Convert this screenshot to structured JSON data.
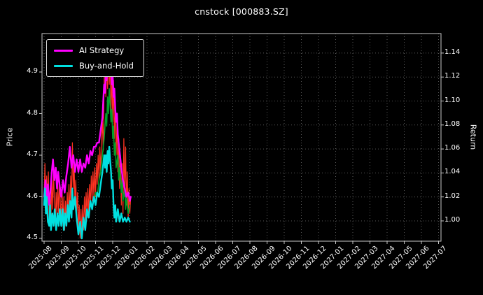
{
  "title": "cnstock [000883.SZ]",
  "legend": {
    "items": [
      {
        "label": "AI Strategy",
        "color": "#ff00ff"
      },
      {
        "label": "Buy-and-Hold",
        "color": "#00e0e0"
      }
    ]
  },
  "axes": {
    "left_label": "Price",
    "right_label": "Return",
    "left_ticks": [
      "4.5",
      "4.6",
      "4.7",
      "4.8",
      "4.9"
    ],
    "right_ticks": [
      "1.00",
      "1.02",
      "1.04",
      "1.06",
      "1.08",
      "1.10",
      "1.12",
      "1.14"
    ],
    "x_ticks": [
      "2025-08",
      "2025-09",
      "2025-10",
      "2025-11",
      "2025-12",
      "2026-01",
      "2026-02",
      "2026-03",
      "2026-04",
      "2026-05",
      "2026-06",
      "2026-07",
      "2026-08",
      "2026-09",
      "2026-10",
      "2026-11",
      "2026-12",
      "2027-01",
      "2027-02",
      "2027-03",
      "2027-04",
      "2027-05",
      "2027-06",
      "2027-07"
    ]
  },
  "chart_data": {
    "type": "line",
    "title": "cnstock [000883.SZ]",
    "xlabel": "",
    "ylabel_left": "Price",
    "ylabel_right": "Return",
    "x_unit": "months since 2025-08",
    "x_range_ticks": [
      "2025-08",
      "2027-07"
    ],
    "data_extent": [
      "2025-08",
      "2026-01"
    ],
    "ylim_left": [
      4.47,
      4.99
    ],
    "ylim_right": [
      0.985,
      1.155
    ],
    "grid": true,
    "legend_position": "upper left",
    "colors": {
      "background": "#000000",
      "text": "#ffffff",
      "grid": "#777777",
      "spine": "#c8c8c8",
      "price_daily": "#ff3322",
      "price_trend": "#00a02a",
      "ai_strategy": "#ff00ff",
      "buy_and_hold": "#00e0e0"
    },
    "series": [
      {
        "name": "Price (daily)",
        "color": "#ff3322",
        "width": 1.2,
        "axis": "left",
        "points": [
          [
            0.0,
            4.6
          ],
          [
            0.05,
            4.68
          ],
          [
            0.1,
            4.56
          ],
          [
            0.15,
            4.65
          ],
          [
            0.2,
            4.58
          ],
          [
            0.25,
            4.66
          ],
          [
            0.3,
            4.54
          ],
          [
            0.35,
            4.62
          ],
          [
            0.4,
            4.55
          ],
          [
            0.45,
            4.64
          ],
          [
            0.5,
            4.57
          ],
          [
            0.55,
            4.66
          ],
          [
            0.6,
            4.59
          ],
          [
            0.65,
            4.53
          ],
          [
            0.7,
            4.61
          ],
          [
            0.75,
            4.55
          ],
          [
            0.8,
            4.63
          ],
          [
            0.85,
            4.56
          ],
          [
            0.9,
            4.64
          ],
          [
            0.95,
            4.58
          ],
          [
            1.0,
            4.54
          ],
          [
            1.05,
            4.62
          ],
          [
            1.1,
            4.53
          ],
          [
            1.15,
            4.6
          ],
          [
            1.2,
            4.52
          ],
          [
            1.25,
            4.59
          ],
          [
            1.3,
            4.53
          ],
          [
            1.35,
            4.61
          ],
          [
            1.4,
            4.55
          ],
          [
            1.45,
            4.63
          ],
          [
            1.5,
            4.56
          ],
          [
            1.55,
            4.65
          ],
          [
            1.6,
            4.58
          ],
          [
            1.65,
            4.73
          ],
          [
            1.7,
            4.62
          ],
          [
            1.75,
            4.68
          ],
          [
            1.8,
            4.58
          ],
          [
            1.85,
            4.64
          ],
          [
            1.9,
            4.56
          ],
          [
            1.95,
            4.61
          ],
          [
            2.0,
            4.52
          ],
          [
            2.05,
            4.58
          ],
          [
            2.1,
            4.5
          ],
          [
            2.15,
            4.57
          ],
          [
            2.2,
            4.51
          ],
          [
            2.25,
            4.58
          ],
          [
            2.3,
            4.52
          ],
          [
            2.35,
            4.6
          ],
          [
            2.4,
            4.54
          ],
          [
            2.45,
            4.61
          ],
          [
            2.5,
            4.55
          ],
          [
            2.55,
            4.62
          ],
          [
            2.6,
            4.56
          ],
          [
            2.65,
            4.63
          ],
          [
            2.7,
            4.58
          ],
          [
            2.75,
            4.65
          ],
          [
            2.8,
            4.59
          ],
          [
            2.85,
            4.66
          ],
          [
            2.9,
            4.6
          ],
          [
            2.95,
            4.67
          ],
          [
            3.0,
            4.6
          ],
          [
            3.05,
            4.68
          ],
          [
            3.1,
            4.63
          ],
          [
            3.15,
            4.7
          ],
          [
            3.2,
            4.64
          ],
          [
            3.25,
            4.72
          ],
          [
            3.3,
            4.66
          ],
          [
            3.35,
            4.74
          ],
          [
            3.4,
            4.78
          ],
          [
            3.45,
            4.71
          ],
          [
            3.5,
            4.88
          ],
          [
            3.55,
            4.97
          ],
          [
            3.6,
            4.84
          ],
          [
            3.65,
            4.92
          ],
          [
            3.7,
            4.86
          ],
          [
            3.75,
            4.96
          ],
          [
            3.8,
            4.87
          ],
          [
            3.85,
            4.93
          ],
          [
            3.9,
            4.8
          ],
          [
            3.95,
            4.9
          ],
          [
            4.0,
            4.78
          ],
          [
            4.05,
            4.88
          ],
          [
            4.1,
            4.74
          ],
          [
            4.15,
            4.82
          ],
          [
            4.2,
            4.7
          ],
          [
            4.25,
            4.78
          ],
          [
            4.3,
            4.66
          ],
          [
            4.35,
            4.74
          ],
          [
            4.4,
            4.62
          ],
          [
            4.45,
            4.7
          ],
          [
            4.5,
            4.58
          ],
          [
            4.55,
            4.68
          ],
          [
            4.6,
            4.56
          ],
          [
            4.65,
            4.74
          ],
          [
            4.7,
            4.6
          ],
          [
            4.75,
            4.72
          ],
          [
            4.8,
            4.58
          ],
          [
            4.85,
            4.66
          ],
          [
            4.9,
            4.55
          ],
          [
            4.95,
            4.62
          ],
          [
            5.0,
            4.56
          ],
          [
            5.05,
            4.6
          ]
        ]
      },
      {
        "name": "Price trend",
        "color": "#00a02a",
        "width": 1.6,
        "axis": "left",
        "points": [
          [
            2.9,
            4.59
          ],
          [
            3.0,
            4.61
          ],
          [
            3.1,
            4.6
          ],
          [
            3.2,
            4.64
          ],
          [
            3.3,
            4.66
          ],
          [
            3.4,
            4.7
          ],
          [
            3.5,
            4.74
          ],
          [
            3.6,
            4.8
          ],
          [
            3.65,
            4.77
          ],
          [
            3.7,
            4.84
          ],
          [
            3.75,
            4.8
          ],
          [
            3.8,
            4.86
          ],
          [
            3.85,
            4.82
          ],
          [
            3.9,
            4.78
          ],
          [
            3.95,
            4.81
          ],
          [
            4.0,
            4.74
          ],
          [
            4.05,
            4.77
          ],
          [
            4.1,
            4.7
          ],
          [
            4.15,
            4.73
          ],
          [
            4.2,
            4.67
          ],
          [
            4.3,
            4.7
          ],
          [
            4.35,
            4.64
          ],
          [
            4.4,
            4.67
          ],
          [
            4.5,
            4.61
          ],
          [
            4.55,
            4.64
          ],
          [
            4.6,
            4.59
          ],
          [
            4.7,
            4.62
          ],
          [
            4.75,
            4.57
          ],
          [
            4.8,
            4.6
          ],
          [
            4.9,
            4.56
          ],
          [
            5.0,
            4.58
          ]
        ]
      },
      {
        "name": "AI Strategy",
        "color": "#ff00ff",
        "width": 2.4,
        "axis": "left",
        "points": [
          [
            0.0,
            4.6
          ],
          [
            0.08,
            4.64
          ],
          [
            0.15,
            4.59
          ],
          [
            0.22,
            4.63
          ],
          [
            0.3,
            4.58
          ],
          [
            0.38,
            4.62
          ],
          [
            0.45,
            4.66
          ],
          [
            0.52,
            4.69
          ],
          [
            0.6,
            4.64
          ],
          [
            0.68,
            4.67
          ],
          [
            0.75,
            4.62
          ],
          [
            0.82,
            4.66
          ],
          [
            0.9,
            4.63
          ],
          [
            1.0,
            4.6
          ],
          [
            1.1,
            4.64
          ],
          [
            1.2,
            4.61
          ],
          [
            1.3,
            4.65
          ],
          [
            1.4,
            4.68
          ],
          [
            1.5,
            4.72
          ],
          [
            1.6,
            4.67
          ],
          [
            1.7,
            4.7
          ],
          [
            1.8,
            4.66
          ],
          [
            1.9,
            4.69
          ],
          [
            2.0,
            4.66
          ],
          [
            2.1,
            4.69
          ],
          [
            2.2,
            4.66
          ],
          [
            2.3,
            4.68
          ],
          [
            2.4,
            4.67
          ],
          [
            2.5,
            4.7
          ],
          [
            2.6,
            4.68
          ],
          [
            2.7,
            4.71
          ],
          [
            2.8,
            4.7
          ],
          [
            2.9,
            4.72
          ],
          [
            3.0,
            4.72
          ],
          [
            3.1,
            4.73
          ],
          [
            3.2,
            4.73
          ],
          [
            3.3,
            4.76
          ],
          [
            3.4,
            4.79
          ],
          [
            3.45,
            4.83
          ],
          [
            3.5,
            4.87
          ],
          [
            3.55,
            4.85
          ],
          [
            3.6,
            4.9
          ],
          [
            3.65,
            4.88
          ],
          [
            3.7,
            4.92
          ],
          [
            3.75,
            4.9
          ],
          [
            3.8,
            4.93
          ],
          [
            3.85,
            4.89
          ],
          [
            3.9,
            4.91
          ],
          [
            3.95,
            4.87
          ],
          [
            4.0,
            4.89
          ],
          [
            4.05,
            4.84
          ],
          [
            4.1,
            4.86
          ],
          [
            4.15,
            4.81
          ],
          [
            4.2,
            4.78
          ],
          [
            4.25,
            4.8
          ],
          [
            4.3,
            4.75
          ],
          [
            4.4,
            4.71
          ],
          [
            4.5,
            4.67
          ],
          [
            4.6,
            4.64
          ],
          [
            4.7,
            4.62
          ],
          [
            4.8,
            4.6
          ],
          [
            4.9,
            4.61
          ],
          [
            5.0,
            4.59
          ],
          [
            5.05,
            4.6
          ]
        ]
      },
      {
        "name": "Buy-and-Hold",
        "color": "#00e0e0",
        "width": 2.4,
        "axis": "left",
        "points": [
          [
            0.0,
            4.58
          ],
          [
            0.05,
            4.62
          ],
          [
            0.1,
            4.56
          ],
          [
            0.15,
            4.6
          ],
          [
            0.22,
            4.54
          ],
          [
            0.3,
            4.53
          ],
          [
            0.35,
            4.58
          ],
          [
            0.4,
            4.52
          ],
          [
            0.48,
            4.56
          ],
          [
            0.55,
            4.53
          ],
          [
            0.62,
            4.57
          ],
          [
            0.7,
            4.52
          ],
          [
            0.78,
            4.56
          ],
          [
            0.85,
            4.53
          ],
          [
            0.92,
            4.57
          ],
          [
            1.0,
            4.53
          ],
          [
            1.08,
            4.57
          ],
          [
            1.15,
            4.52
          ],
          [
            1.22,
            4.56
          ],
          [
            1.3,
            4.53
          ],
          [
            1.38,
            4.58
          ],
          [
            1.45,
            4.54
          ],
          [
            1.52,
            4.59
          ],
          [
            1.6,
            4.55
          ],
          [
            1.65,
            4.62
          ],
          [
            1.7,
            4.57
          ],
          [
            1.8,
            4.6
          ],
          [
            1.9,
            4.55
          ],
          [
            2.0,
            4.51
          ],
          [
            2.1,
            4.54
          ],
          [
            2.2,
            4.5
          ],
          [
            2.3,
            4.55
          ],
          [
            2.4,
            4.52
          ],
          [
            2.5,
            4.57
          ],
          [
            2.6,
            4.55
          ],
          [
            2.7,
            4.59
          ],
          [
            2.8,
            4.57
          ],
          [
            2.9,
            4.6
          ],
          [
            3.0,
            4.58
          ],
          [
            3.1,
            4.61
          ],
          [
            3.2,
            4.6
          ],
          [
            3.3,
            4.63
          ],
          [
            3.4,
            4.66
          ],
          [
            3.5,
            4.7
          ],
          [
            3.55,
            4.67
          ],
          [
            3.6,
            4.7
          ],
          [
            3.65,
            4.66
          ],
          [
            3.7,
            4.71
          ],
          [
            3.75,
            4.68
          ],
          [
            3.8,
            4.72
          ],
          [
            3.85,
            4.69
          ],
          [
            3.9,
            4.66
          ],
          [
            3.95,
            4.62
          ],
          [
            4.0,
            4.64
          ],
          [
            4.05,
            4.58
          ],
          [
            4.1,
            4.55
          ],
          [
            4.15,
            4.58
          ],
          [
            4.2,
            4.54
          ],
          [
            4.3,
            4.57
          ],
          [
            4.4,
            4.54
          ],
          [
            4.5,
            4.56
          ],
          [
            4.6,
            4.54
          ],
          [
            4.7,
            4.55
          ],
          [
            4.8,
            4.54
          ],
          [
            4.9,
            4.55
          ],
          [
            5.0,
            4.54
          ]
        ]
      }
    ]
  }
}
